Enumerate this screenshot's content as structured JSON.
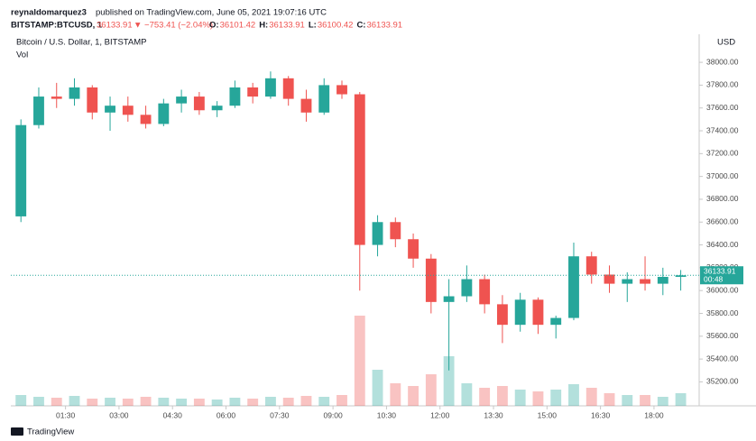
{
  "chart_data": {
    "type": "candlestick",
    "publisher": "reynaldomarquez3",
    "published": "published on TradingView.com, June 05, 2021 19:07:16 UTC",
    "symbol": "BITSTAMP:BTCUSD, 1",
    "change": "▼ −753.41 (−2.04%)",
    "ohlc_labels": [
      "O:",
      "H:",
      "L:",
      "C:"
    ],
    "ohlc_values": [
      36101.42,
      36133.91,
      36100.42,
      36133.91
    ],
    "title": "Bitcoin / U.S. Dollar, 1, BITSTAMP",
    "volume_label": "Vol",
    "currency": "USD",
    "countdown": "00:48",
    "brand": "TradingView",
    "up_color": "#26a69a",
    "down_color": "#ef5350",
    "x": [
      0,
      30,
      60,
      90,
      120,
      150,
      180,
      210,
      240,
      270,
      300,
      330,
      360,
      390,
      420,
      450,
      480,
      510,
      540,
      570,
      600,
      630,
      660,
      690,
      720,
      750,
      780,
      810,
      840,
      870,
      900,
      930,
      960,
      990,
      1020,
      1050,
      1080,
      1110
    ],
    "open": [
      36650,
      37450,
      37700,
      37680,
      37780,
      37560,
      37620,
      37540,
      37460,
      37640,
      37700,
      37580,
      37620,
      37780,
      37700,
      37860,
      37680,
      37560,
      37800,
      37720,
      36400,
      36600,
      36450,
      36280,
      35900,
      35950,
      36100,
      35880,
      35700,
      35920,
      35700,
      35760,
      36300,
      36140,
      36060,
      36100,
      36060,
      36120
    ],
    "high": [
      37500,
      37780,
      37820,
      37860,
      37800,
      37700,
      37700,
      37620,
      37680,
      37760,
      37740,
      37660,
      37840,
      37820,
      37920,
      37880,
      37760,
      37860,
      37840,
      37740,
      36660,
      36640,
      36500,
      36320,
      36100,
      36220,
      36140,
      35960,
      35980,
      35940,
      35780,
      36420,
      36340,
      36220,
      36160,
      36300,
      36200,
      36180
    ],
    "low": [
      36600,
      37420,
      37600,
      37620,
      37500,
      37400,
      37480,
      37420,
      37440,
      37560,
      37540,
      37520,
      37600,
      37640,
      37680,
      37620,
      37480,
      37540,
      37680,
      36000,
      36300,
      36380,
      36200,
      35800,
      35300,
      35900,
      35800,
      35540,
      35640,
      35620,
      35580,
      35740,
      36060,
      35980,
      35900,
      36000,
      35960,
      36000
    ],
    "close": [
      37450,
      37700,
      37680,
      37780,
      37560,
      37620,
      37540,
      37460,
      37640,
      37700,
      37580,
      37620,
      37780,
      37700,
      37860,
      37680,
      37560,
      37800,
      37720,
      36400,
      36600,
      36450,
      36280,
      35900,
      35950,
      36100,
      35880,
      35700,
      35920,
      35700,
      35760,
      36300,
      36140,
      36060,
      36100,
      36060,
      36120,
      36133.91
    ],
    "volume": [
      12,
      10,
      9,
      11,
      8,
      9,
      8,
      10,
      9,
      8,
      8,
      7,
      9,
      8,
      10,
      9,
      11,
      10,
      12,
      100,
      40,
      25,
      22,
      35,
      55,
      25,
      20,
      22,
      18,
      16,
      18,
      24,
      20,
      14,
      12,
      12,
      10,
      14
    ],
    "xlim": [
      -2,
      1156
    ],
    "xticks": [
      {
        "value": 90,
        "label": "01:30"
      },
      {
        "value": 180,
        "label": "03:00"
      },
      {
        "value": 270,
        "label": "04:30"
      },
      {
        "value": 360,
        "label": "06:00"
      },
      {
        "value": 450,
        "label": "07:30"
      },
      {
        "value": 540,
        "label": "09:00"
      },
      {
        "value": 630,
        "label": "10:30"
      },
      {
        "value": 720,
        "label": "12:00"
      },
      {
        "value": 810,
        "label": "13:30"
      },
      {
        "value": 900,
        "label": "15:00"
      },
      {
        "value": 990,
        "label": "16:30"
      },
      {
        "value": 1080,
        "label": "18:00"
      }
    ],
    "ylim": [
      34990,
      38230
    ],
    "yticks": [
      {
        "value": 35200,
        "label": "35200.00"
      },
      {
        "value": 35400,
        "label": "35400.00"
      },
      {
        "value": 35600,
        "label": "35600.00"
      },
      {
        "value": 35800,
        "label": "35800.00"
      },
      {
        "value": 36000,
        "label": "36000.00"
      },
      {
        "value": 36200,
        "label": "36200.00"
      },
      {
        "value": 36400,
        "label": "36400.00"
      },
      {
        "value": 36600,
        "label": "36600.00"
      },
      {
        "value": 36800,
        "label": "36800.00"
      },
      {
        "value": 37000,
        "label": "37000.00"
      },
      {
        "value": 37200,
        "label": "37200.00"
      },
      {
        "value": 37400,
        "label": "37400.00"
      },
      {
        "value": 37600,
        "label": "37600.00"
      },
      {
        "value": 37800,
        "label": "37800.00"
      },
      {
        "value": 38000,
        "label": "38000.00"
      }
    ]
  }
}
